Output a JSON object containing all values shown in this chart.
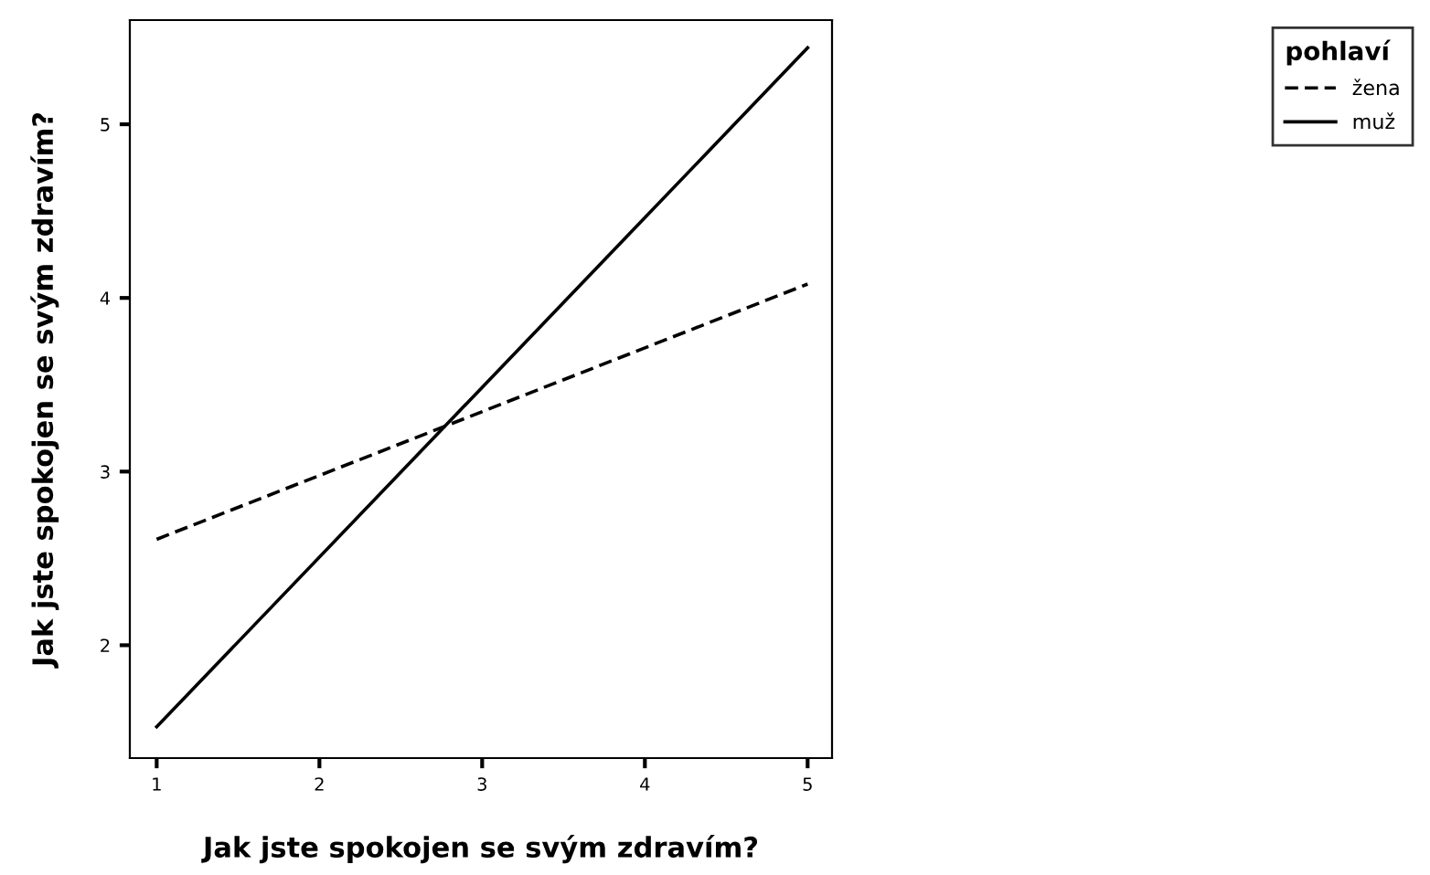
{
  "chart_data": {
    "type": "line",
    "xlabel": "Jak jste spokojen se svým zdravím?",
    "ylabel": "Jak jste spokojen se svým zdravím?",
    "legend_title": "pohlaví",
    "x": [
      1,
      5
    ],
    "series": [
      {
        "name": "žena",
        "color": "#000000",
        "line_style": "dashed",
        "values": [
          2.61,
          4.08
        ]
      },
      {
        "name": "muž",
        "color": "#000000",
        "line_style": "solid",
        "values": [
          1.53,
          5.44
        ]
      }
    ],
    "xlim": [
      0.835,
      5.15
    ],
    "ylim": [
      1.35,
      5.6
    ],
    "xticks": [
      1,
      2,
      3,
      4,
      5
    ],
    "yticks": [
      2,
      3,
      4,
      5
    ],
    "grid": false,
    "legend": "top right",
    "marker": "none"
  }
}
